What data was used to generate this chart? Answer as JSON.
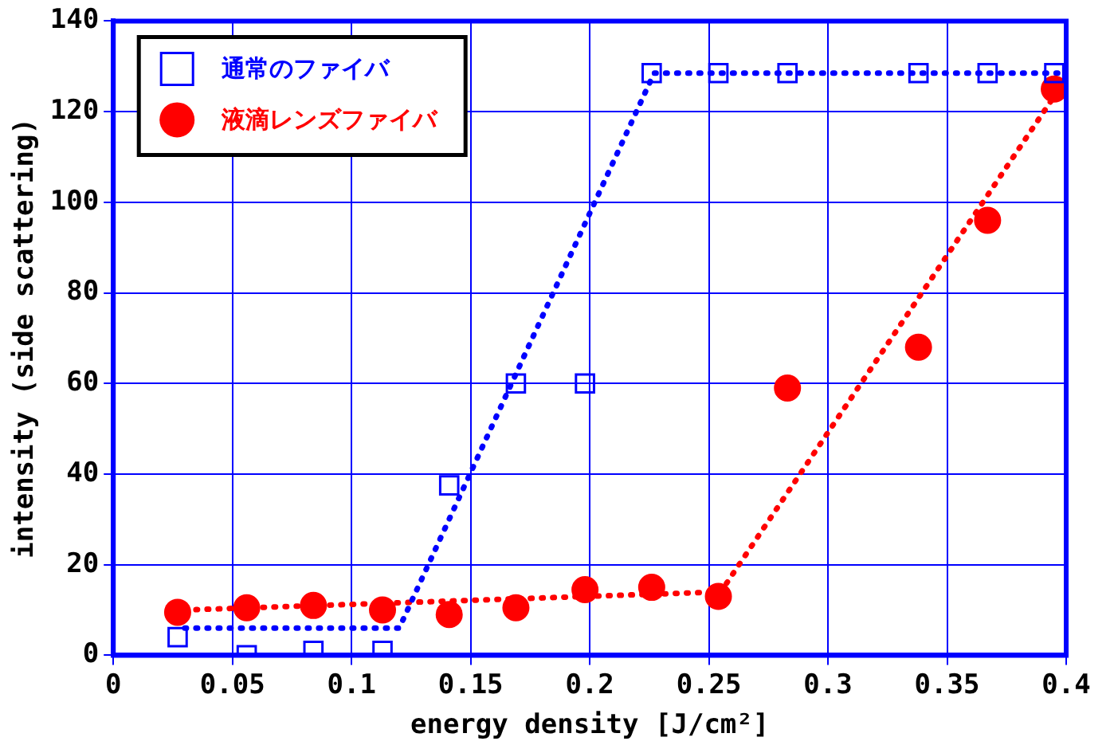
{
  "chart_data": {
    "type": "scatter",
    "xlabel": "energy density [J/cm²]",
    "ylabel": "intensity (side scattering)",
    "xlim": [
      0,
      0.4
    ],
    "xticks": [
      0,
      0.05,
      0.1,
      0.15,
      0.2,
      0.25,
      0.3,
      0.35,
      0.4
    ],
    "ylim": [
      0,
      140
    ],
    "yticks": [
      0,
      20,
      40,
      60,
      80,
      100,
      120,
      140
    ],
    "grid": true,
    "legend": "top left",
    "series": [
      {
        "name": "通常のファイバ",
        "marker": "square",
        "color": "#0000ff",
        "x": [
          0.027,
          0.056,
          0.084,
          0.113,
          0.141,
          0.169,
          0.198,
          0.226,
          0.254,
          0.283,
          0.338,
          0.367,
          0.395
        ],
        "values": [
          4,
          0,
          1,
          1,
          37.5,
          60,
          60,
          128.5,
          128.5,
          128.5,
          128.5,
          128.5,
          128.5
        ]
      },
      {
        "name": "液滴レンズファイバ",
        "marker": "circle",
        "color": "#ff0000",
        "x": [
          0.027,
          0.056,
          0.084,
          0.113,
          0.141,
          0.169,
          0.198,
          0.226,
          0.254,
          0.283,
          0.338,
          0.367,
          0.395
        ],
        "values": [
          9.5,
          10.5,
          11,
          10,
          9,
          10.5,
          14.5,
          15,
          13,
          59,
          68,
          96,
          125
        ]
      },
      {
        "type": "line",
        "marker": "none",
        "line_style": "dotted",
        "color": "#0000ff",
        "x": [
          0.03,
          0.12,
          0.227,
          0.4
        ],
        "values": [
          6,
          6,
          128.5,
          128.5
        ]
      },
      {
        "type": "line",
        "marker": "none",
        "line_style": "dotted",
        "color": "#ff0000",
        "x": [
          0.03,
          0.255,
          0.397
        ],
        "values": [
          10,
          14,
          125
        ]
      }
    ]
  }
}
